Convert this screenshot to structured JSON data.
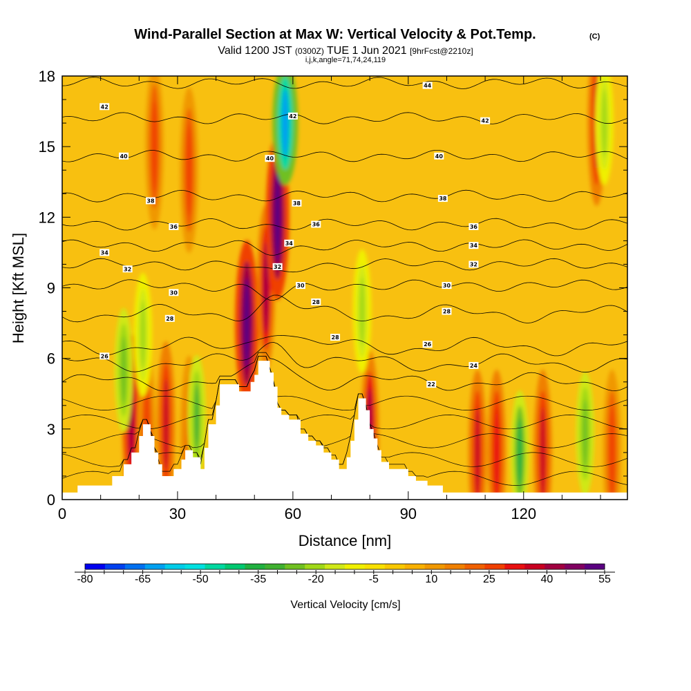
{
  "title": {
    "main": "Wind-Parallel Section at Max W: Vertical Velocity & Pot.Temp.",
    "copyright": "(C)",
    "valid_prefix": "Valid 1200 JST",
    "valid_utc": "(0300Z)",
    "valid_date": "TUE 1 Jun 2021",
    "forecast": "[9hrFcst@2210z]",
    "indices": "i,j,k,angle=71,74,24,119"
  },
  "chart_data": {
    "type": "heatmap",
    "xlabel": "Distance [nm]",
    "ylabel": "Height [Kft MSL]",
    "xlim": [
      0,
      147
    ],
    "ylim": [
      0,
      18
    ],
    "x_ticks": [
      0,
      30,
      60,
      90,
      120
    ],
    "y_ticks": [
      0,
      3,
      6,
      9,
      12,
      15,
      18
    ],
    "colorbar": {
      "label": "Vertical Velocity [cm/s]",
      "tick_labels": [
        "-80",
        "-65",
        "-50",
        "-35",
        "-20",
        "-5",
        "10",
        "25",
        "40",
        "55"
      ],
      "tick_values": [
        -80,
        -65,
        -50,
        -35,
        -20,
        -5,
        10,
        25,
        40,
        55
      ],
      "colors": [
        "#0000ee",
        "#0040ee",
        "#0070f0",
        "#00a0f0",
        "#00cce8",
        "#00e0e0",
        "#00d8a0",
        "#00c870",
        "#20b040",
        "#40b030",
        "#70c020",
        "#a0d818",
        "#d0e818",
        "#f0f000",
        "#f8e000",
        "#f8c800",
        "#f8b000",
        "#f09800",
        "#f08000",
        "#f06000",
        "#f04000",
        "#e81010",
        "#c80020",
        "#a00040",
        "#800060",
        "#5a0080"
      ]
    },
    "terrain": [
      [
        0,
        0.3
      ],
      [
        4,
        0.3
      ],
      [
        4,
        0.6
      ],
      [
        13,
        0.6
      ],
      [
        13,
        1.0
      ],
      [
        16,
        1.0
      ],
      [
        16,
        1.5
      ],
      [
        18,
        1.5
      ],
      [
        18,
        2.0
      ],
      [
        20,
        2.0
      ],
      [
        20,
        2.7
      ],
      [
        21,
        2.7
      ],
      [
        21,
        3.2
      ],
      [
        23,
        3.2
      ],
      [
        23,
        2.7
      ],
      [
        24,
        2.7
      ],
      [
        24,
        2.0
      ],
      [
        25,
        2.0
      ],
      [
        25,
        1.5
      ],
      [
        26,
        1.5
      ],
      [
        26,
        1.0
      ],
      [
        29,
        1.0
      ],
      [
        29,
        1.3
      ],
      [
        31,
        1.3
      ],
      [
        31,
        1.7
      ],
      [
        32,
        1.7
      ],
      [
        32,
        2.1
      ],
      [
        34,
        2.1
      ],
      [
        34,
        1.8
      ],
      [
        36,
        1.8
      ],
      [
        36,
        1.3
      ],
      [
        37,
        1.3
      ],
      [
        37,
        2.2
      ],
      [
        38,
        2.2
      ],
      [
        38,
        3.2
      ],
      [
        40,
        3.2
      ],
      [
        40,
        4.0
      ],
      [
        41,
        4.0
      ],
      [
        41,
        4.9
      ],
      [
        46,
        4.9
      ],
      [
        46,
        4.6
      ],
      [
        49,
        4.6
      ],
      [
        49,
        5.0
      ],
      [
        50,
        5.0
      ],
      [
        50,
        5.3
      ],
      [
        51,
        5.3
      ],
      [
        51,
        5.9
      ],
      [
        54,
        5.9
      ],
      [
        54,
        5.4
      ],
      [
        55,
        5.4
      ],
      [
        55,
        4.8
      ],
      [
        56,
        4.8
      ],
      [
        56,
        3.9
      ],
      [
        57,
        3.9
      ],
      [
        57,
        3.6
      ],
      [
        59,
        3.6
      ],
      [
        59,
        3.4
      ],
      [
        62,
        3.4
      ],
      [
        62,
        2.8
      ],
      [
        64,
        2.8
      ],
      [
        64,
        2.5
      ],
      [
        66,
        2.5
      ],
      [
        66,
        2.3
      ],
      [
        68,
        2.3
      ],
      [
        68,
        2.0
      ],
      [
        70,
        2.0
      ],
      [
        70,
        1.7
      ],
      [
        72,
        1.7
      ],
      [
        72,
        1.3
      ],
      [
        74,
        1.3
      ],
      [
        74,
        1.8
      ],
      [
        75,
        1.8
      ],
      [
        75,
        2.5
      ],
      [
        76,
        2.5
      ],
      [
        76,
        3.4
      ],
      [
        77,
        3.4
      ],
      [
        77,
        4.3
      ],
      [
        79,
        4.3
      ],
      [
        79,
        3.8
      ],
      [
        80,
        3.8
      ],
      [
        80,
        3.0
      ],
      [
        81,
        3.0
      ],
      [
        81,
        2.6
      ],
      [
        82,
        2.6
      ],
      [
        82,
        2.1
      ],
      [
        83,
        2.1
      ],
      [
        83,
        1.6
      ],
      [
        85,
        1.6
      ],
      [
        85,
        1.3
      ],
      [
        90,
        1.3
      ],
      [
        90,
        1.0
      ],
      [
        92,
        1.0
      ],
      [
        92,
        0.8
      ],
      [
        95,
        0.8
      ],
      [
        95,
        0.6
      ],
      [
        99,
        0.6
      ],
      [
        99,
        0.3
      ],
      [
        147,
        0.3
      ]
    ],
    "updrafts": [
      {
        "x": 18,
        "z": 3.5,
        "w": 42
      },
      {
        "x": 22,
        "z": 2.8,
        "w": 28
      },
      {
        "x": 27,
        "z": 3.2,
        "w": 35
      },
      {
        "x": 33,
        "z": 2.6,
        "w": 24
      },
      {
        "x": 48,
        "z": 7.5,
        "w": 55
      },
      {
        "x": 53,
        "z": 9.0,
        "w": 40
      },
      {
        "x": 56,
        "z": 12.0,
        "w": 55
      },
      {
        "x": 24,
        "z": 15.0,
        "w": 28
      },
      {
        "x": 33,
        "z": 14.0,
        "w": 25
      },
      {
        "x": 80,
        "z": 2.8,
        "w": 40
      },
      {
        "x": 108,
        "z": 2.0,
        "w": 35
      },
      {
        "x": 113,
        "z": 2.0,
        "w": 32
      },
      {
        "x": 125,
        "z": 2.0,
        "w": 35
      },
      {
        "x": 139,
        "z": 16.0,
        "w": 38
      },
      {
        "x": 143,
        "z": 2.0,
        "w": 28
      }
    ],
    "downdrafts": [
      {
        "x": 16,
        "z": 5.5,
        "w": -28
      },
      {
        "x": 21,
        "z": 7.0,
        "w": -22
      },
      {
        "x": 35,
        "z": 3.5,
        "w": -30
      },
      {
        "x": 58,
        "z": 16.0,
        "w": -60
      },
      {
        "x": 78,
        "z": 8.0,
        "w": -22
      },
      {
        "x": 119,
        "z": 2.0,
        "w": -35
      },
      {
        "x": 136,
        "z": 2.8,
        "w": -28
      },
      {
        "x": 141,
        "z": 16.0,
        "w": -22
      }
    ],
    "isentropes": [
      {
        "theta": 22,
        "base": 5.0
      },
      {
        "theta": 24,
        "base": 5.8
      },
      {
        "theta": 26,
        "base": 6.5
      },
      {
        "theta": 28,
        "base": 7.9
      },
      {
        "theta": 30,
        "base": 9.1
      },
      {
        "theta": 32,
        "base": 10.0
      },
      {
        "theta": 34,
        "base": 10.8
      },
      {
        "theta": 36,
        "base": 11.7
      },
      {
        "theta": 38,
        "base": 12.9
      },
      {
        "theta": 40,
        "base": 14.6
      },
      {
        "theta": 42,
        "base": 16.2
      },
      {
        "theta": 44,
        "base": 17.7
      }
    ],
    "contour_labels": [
      {
        "text": "42",
        "x": 11,
        "z": 16.7
      },
      {
        "text": "40",
        "x": 16,
        "z": 14.6
      },
      {
        "text": "38",
        "x": 23,
        "z": 12.7
      },
      {
        "text": "36",
        "x": 29,
        "z": 11.6
      },
      {
        "text": "34",
        "x": 11,
        "z": 10.5
      },
      {
        "text": "32",
        "x": 17,
        "z": 9.8
      },
      {
        "text": "30",
        "x": 29,
        "z": 8.8
      },
      {
        "text": "28",
        "x": 28,
        "z": 7.7
      },
      {
        "text": "26",
        "x": 11,
        "z": 6.1
      },
      {
        "text": "42",
        "x": 60,
        "z": 16.3
      },
      {
        "text": "40",
        "x": 54,
        "z": 14.5
      },
      {
        "text": "38",
        "x": 61,
        "z": 12.6
      },
      {
        "text": "36",
        "x": 66,
        "z": 11.7
      },
      {
        "text": "34",
        "x": 59,
        "z": 10.9
      },
      {
        "text": "32",
        "x": 56,
        "z": 9.9
      },
      {
        "text": "30",
        "x": 62,
        "z": 9.1
      },
      {
        "text": "28",
        "x": 66,
        "z": 8.4
      },
      {
        "text": "28",
        "x": 71,
        "z": 6.9
      },
      {
        "text": "44",
        "x": 95,
        "z": 17.6
      },
      {
        "text": "42",
        "x": 110,
        "z": 16.1
      },
      {
        "text": "40",
        "x": 98,
        "z": 14.6
      },
      {
        "text": "38",
        "x": 99,
        "z": 12.8
      },
      {
        "text": "36",
        "x": 107,
        "z": 11.6
      },
      {
        "text": "34",
        "x": 107,
        "z": 10.8
      },
      {
        "text": "32",
        "x": 107,
        "z": 10.0
      },
      {
        "text": "30",
        "x": 100,
        "z": 9.1
      },
      {
        "text": "28",
        "x": 100,
        "z": 8.0
      },
      {
        "text": "26",
        "x": 95,
        "z": 6.6
      },
      {
        "text": "24",
        "x": 107,
        "z": 5.7
      },
      {
        "text": "22",
        "x": 96,
        "z": 4.9
      }
    ]
  }
}
